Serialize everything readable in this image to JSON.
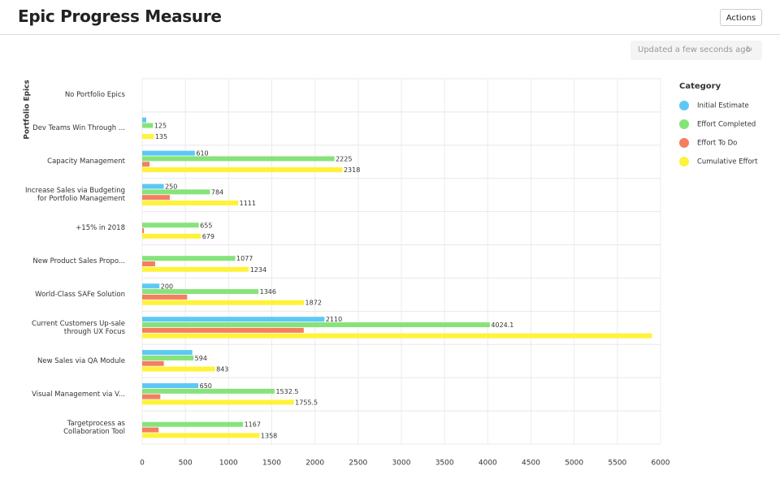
{
  "header": {
    "title": "Epic Progress Measure",
    "actions": "Actions",
    "updated": "Updated a few seconds ago"
  },
  "chart_data": {
    "type": "bar",
    "orientation": "horizontal",
    "y_label": "Portfolio Epics",
    "legend_title": "Category",
    "legend": "right",
    "categories": [
      "No Portfolio Epics",
      "Dev Teams Win Through ...",
      "Capacity Management",
      "Increase Sales via Budgeting\nfor Portfolio Management",
      "+15% in 2018",
      "New Product Sales Propo...",
      "World-Class SAFe Solution",
      "Current Customers Up-sale\nthrough UX Focus",
      "New Sales via QA Module",
      "Visual Management via V...",
      "Targetprocess as\nCollaboration Tool"
    ],
    "series": [
      {
        "name": "Initial Estimate",
        "color": "#5ec8f4",
        "values": [
          null,
          47,
          610,
          250,
          null,
          null,
          200,
          2110,
          580,
          650,
          null
        ],
        "value_labels": [
          null,
          null,
          "610",
          "250",
          null,
          null,
          "200",
          "2110",
          null,
          "650",
          null
        ]
      },
      {
        "name": "Effort Completed",
        "color": "#86e37a",
        "values": [
          null,
          125,
          2225,
          784,
          655,
          1077,
          1346,
          4024.1,
          594,
          1532.5,
          1167
        ],
        "value_labels": [
          null,
          "125",
          "2225",
          "784",
          "655",
          "1077",
          "1346",
          "4024.1",
          "594",
          "1532.5",
          "1167"
        ]
      },
      {
        "name": "Effort To Do",
        "color": "#f47e60",
        "values": [
          null,
          null,
          85,
          320,
          20,
          150,
          520,
          1870,
          250,
          210,
          190
        ],
        "value_labels": [
          null,
          null,
          null,
          null,
          null,
          null,
          null,
          null,
          null,
          null,
          null
        ]
      },
      {
        "name": "Cumulative Effort",
        "color": "#fff23a",
        "values": [
          null,
          135,
          2318,
          1111,
          679,
          1234,
          1872,
          5900,
          843,
          1755.5,
          1358
        ],
        "value_labels": [
          null,
          "135",
          "2318",
          "1111",
          "679",
          "1234",
          "1872",
          null,
          "843",
          "1755.5",
          "1358"
        ]
      }
    ],
    "xlim": [
      0,
      6000
    ],
    "xticks": [
      0,
      500,
      1000,
      1500,
      2000,
      2500,
      3000,
      3500,
      4000,
      4500,
      5000,
      5500,
      6000
    ],
    "grid": true
  }
}
